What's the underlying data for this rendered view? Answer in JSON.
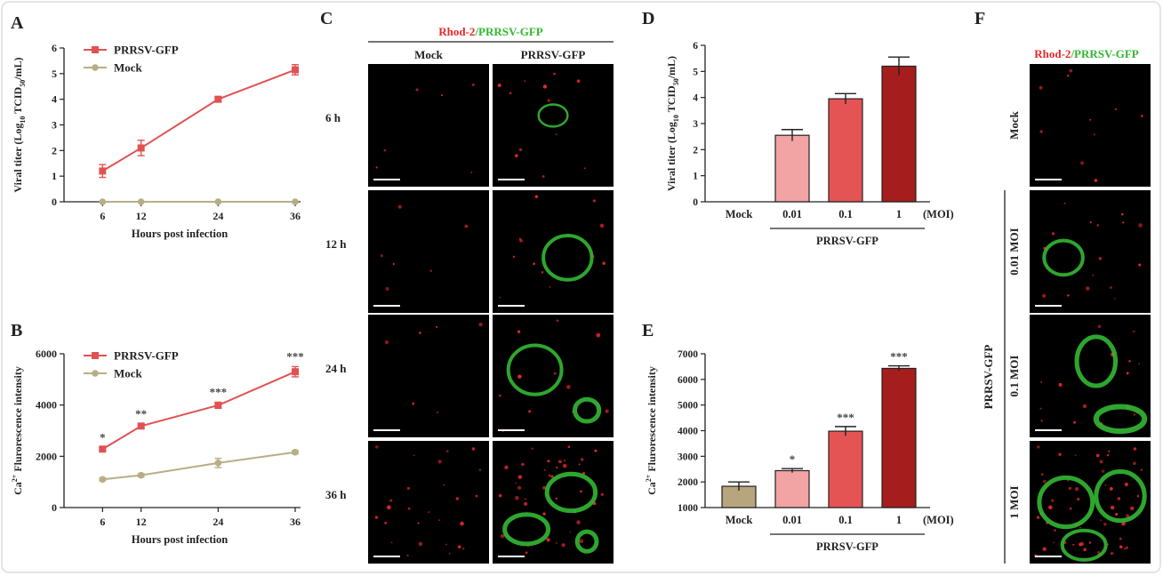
{
  "panels": {
    "A": "A",
    "B": "B",
    "C": "C",
    "D": "D",
    "E": "E",
    "F": "F"
  },
  "colors": {
    "prrsv": "#e05252",
    "mock": "#b8ae84",
    "bar_mock": "#b7a67d",
    "bar_001": "#f2a3a3",
    "bar_01": "#e55454",
    "bar_1": "#a51d1d",
    "rhod2": "#e8282a",
    "gfp": "#33b833"
  },
  "chart_data": [
    {
      "id": "A",
      "type": "line",
      "x": [
        6,
        12,
        24,
        36
      ],
      "xlabel": "Hours post infection",
      "ylabel_pre": "Viral titer (Log",
      "ylabel_sub": "10",
      "ylabel_mid": " TCID",
      "ylabel_sub2": "50",
      "ylabel_post": "/mL)",
      "ylim": [
        0,
        6
      ],
      "yticks": [
        "0",
        "1",
        "2",
        "3",
        "4",
        "5",
        "6"
      ],
      "xticks": [
        "6",
        "12",
        "24",
        "36"
      ],
      "legend_position": "top-left",
      "series": [
        {
          "name": "PRRSV-GFP",
          "values": [
            1.2,
            2.1,
            4.0,
            5.15
          ],
          "err": [
            0.25,
            0.3,
            0.1,
            0.2
          ]
        },
        {
          "name": "Mock",
          "values": [
            0,
            0,
            0,
            0
          ],
          "err": [
            0,
            0,
            0,
            0
          ]
        }
      ]
    },
    {
      "id": "B",
      "type": "line",
      "x": [
        6,
        12,
        24,
        36
      ],
      "xlabel": "Hours post infection",
      "ylabel_pre": "Ca",
      "ylabel_sup": "2+",
      "ylabel_post": " Flurorescence intensity",
      "ylim": [
        0,
        6000
      ],
      "yticks": [
        "0",
        "2000",
        "4000",
        "6000"
      ],
      "xticks": [
        "6",
        "12",
        "24",
        "36"
      ],
      "legend_position": "top-left",
      "annotations": [
        "*",
        "**",
        "***",
        "***"
      ],
      "series": [
        {
          "name": "PRRSV-GFP",
          "values": [
            2280,
            3180,
            3990,
            5300
          ],
          "err": [
            60,
            80,
            120,
            200
          ]
        },
        {
          "name": "Mock",
          "values": [
            1100,
            1260,
            1740,
            2160
          ],
          "err": [
            50,
            60,
            180,
            60
          ]
        }
      ]
    },
    {
      "id": "D",
      "type": "bar",
      "categories": [
        "Mock",
        "0.01",
        "0.1",
        "1"
      ],
      "unit": "(MOI)",
      "group_label": "PRRSV-GFP",
      "ylabel_pre": "Viral titer (Log",
      "ylabel_sub": "10",
      "ylabel_mid": " TCID",
      "ylabel_sub2": "50",
      "ylabel_post": "/mL)",
      "ylim": [
        0,
        6
      ],
      "yticks": [
        "0",
        "1",
        "2",
        "3",
        "4",
        "5",
        "6"
      ],
      "values": [
        0,
        2.55,
        3.95,
        5.2
      ],
      "err": [
        0,
        0.22,
        0.2,
        0.35
      ]
    },
    {
      "id": "E",
      "type": "bar",
      "categories": [
        "Mock",
        "0.01",
        "0.1",
        "1"
      ],
      "unit": "(MOI)",
      "group_label": "PRRSV-GFP",
      "ylabel_pre": "Ca",
      "ylabel_sup": "2+",
      "ylabel_post": " Flurorescence intensity",
      "ylim": [
        1000,
        7000
      ],
      "yticks": [
        "1000",
        "2000",
        "3000",
        "4000",
        "5000",
        "6000",
        "7000"
      ],
      "values": [
        1830,
        2440,
        3980,
        6430
      ],
      "err": [
        170,
        80,
        180,
        100
      ],
      "annotations": [
        "",
        "*",
        "***",
        "***"
      ]
    }
  ],
  "microscopy_C": {
    "title_red": "Rhod-2",
    "title_green": "/PRRSV-GFP",
    "columns": [
      "Mock",
      "PRRSV-GFP"
    ],
    "rows": [
      "6 h",
      "12 h",
      "24 h",
      "36 h"
    ]
  },
  "microscopy_F": {
    "title_red": "Rhod-2",
    "title_green": "/PRRSV-GFP",
    "group_label": "PRRSV-GFP",
    "rows": [
      "Mock",
      "0.01  MOI",
      "0.1  MOI",
      "1  MOI"
    ]
  }
}
